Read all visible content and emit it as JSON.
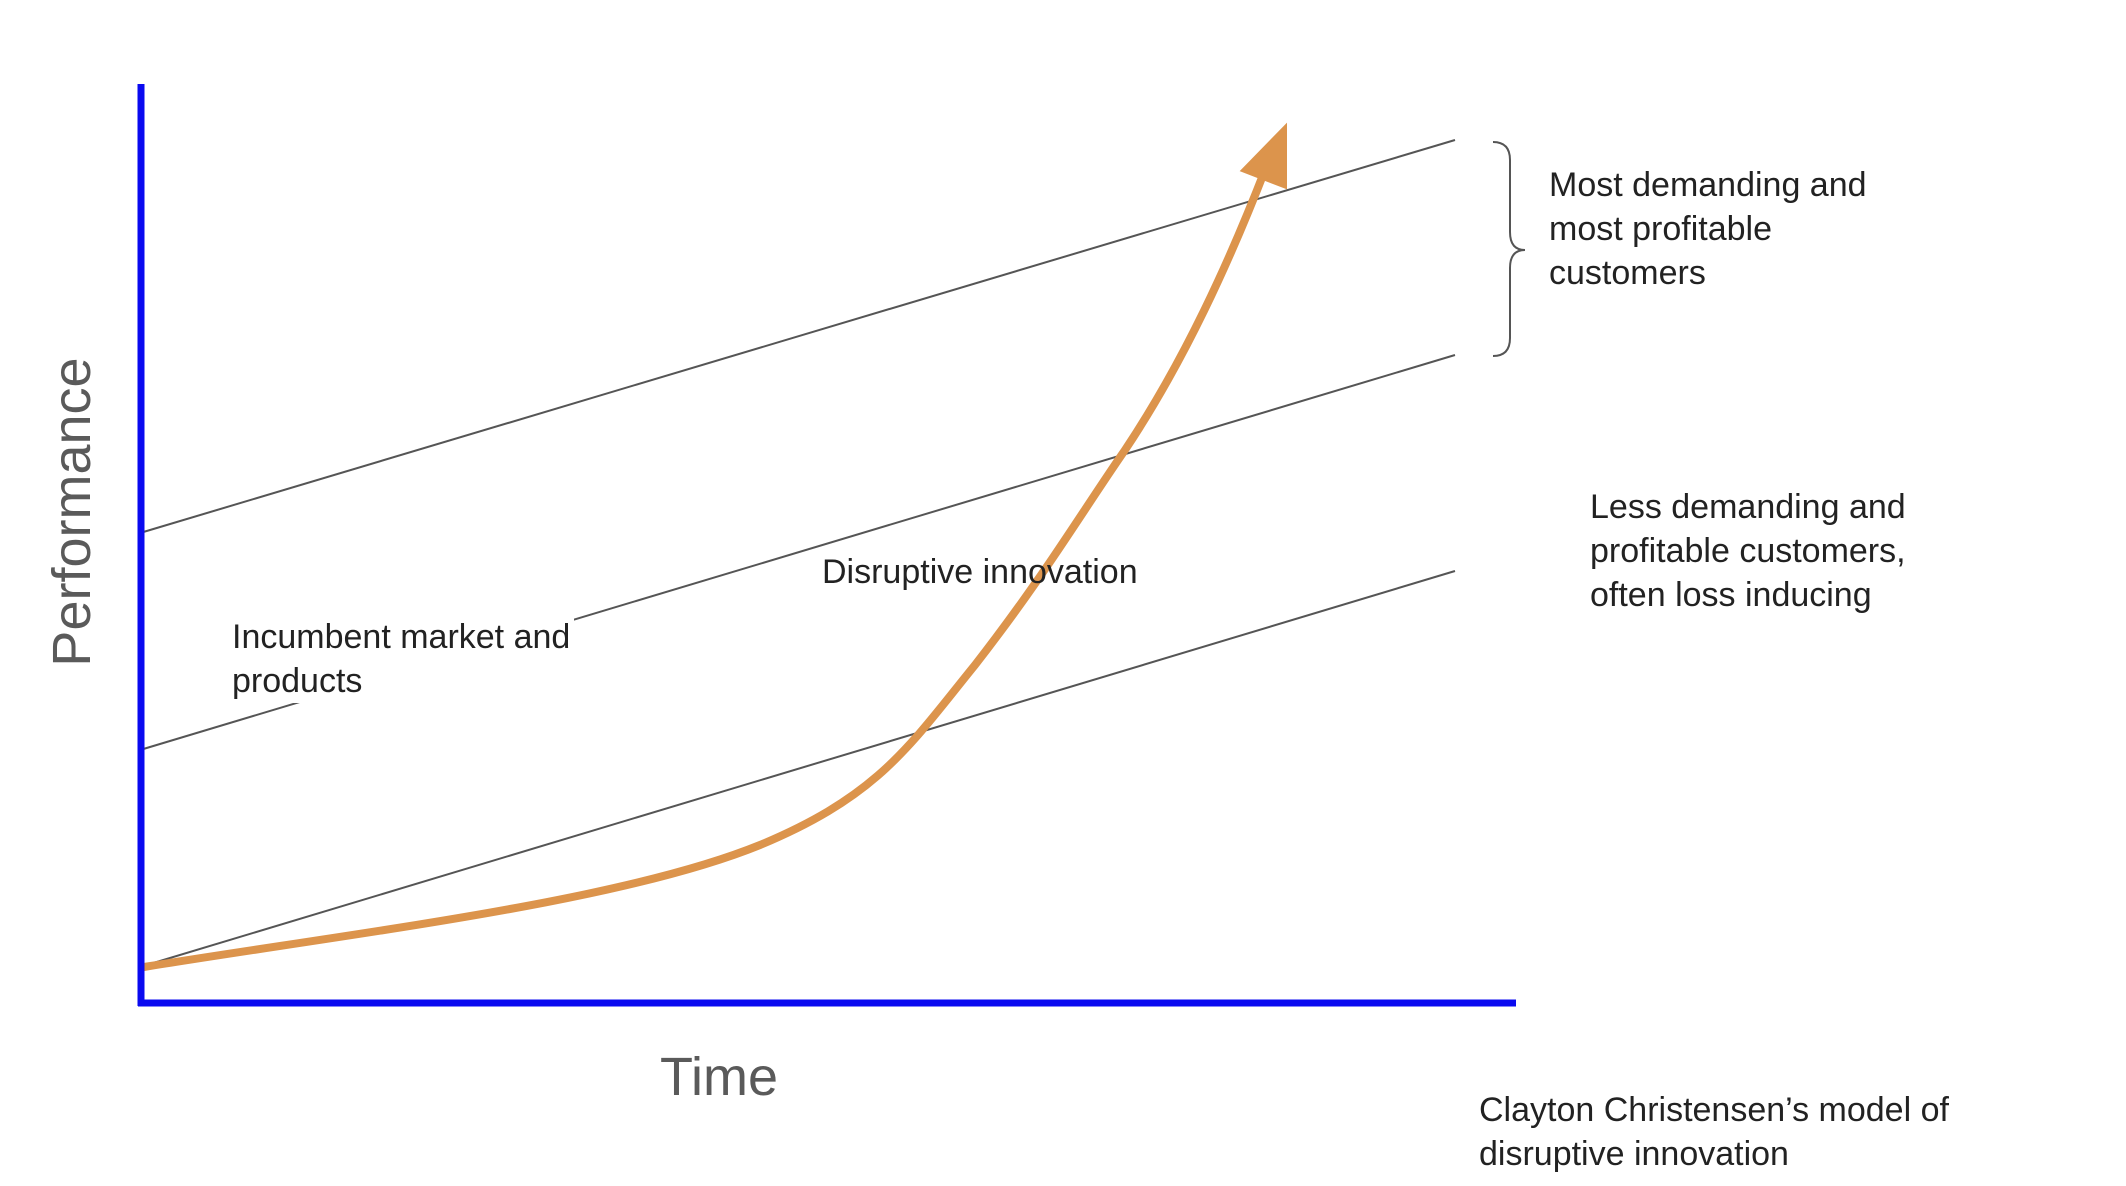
{
  "axes": {
    "y_title": "Performance",
    "x_title": "Time"
  },
  "labels": {
    "top_band": [
      "Most demanding and",
      "most profitable",
      "customers"
    ],
    "lower_band": [
      "Less demanding and",
      "profitable customers,",
      "often loss inducing"
    ],
    "incumbent": [
      "Incumbent market and",
      "products"
    ],
    "disruptive": "Disruptive innovation",
    "caption": [
      "Clayton Christensen’s model of",
      "disruptive innovation"
    ]
  },
  "colors": {
    "axis": "#0a0af0",
    "curve": "#dc944c",
    "trend_lines": "#555555",
    "text": "#222222",
    "axis_title": "#5a5a5a"
  }
}
